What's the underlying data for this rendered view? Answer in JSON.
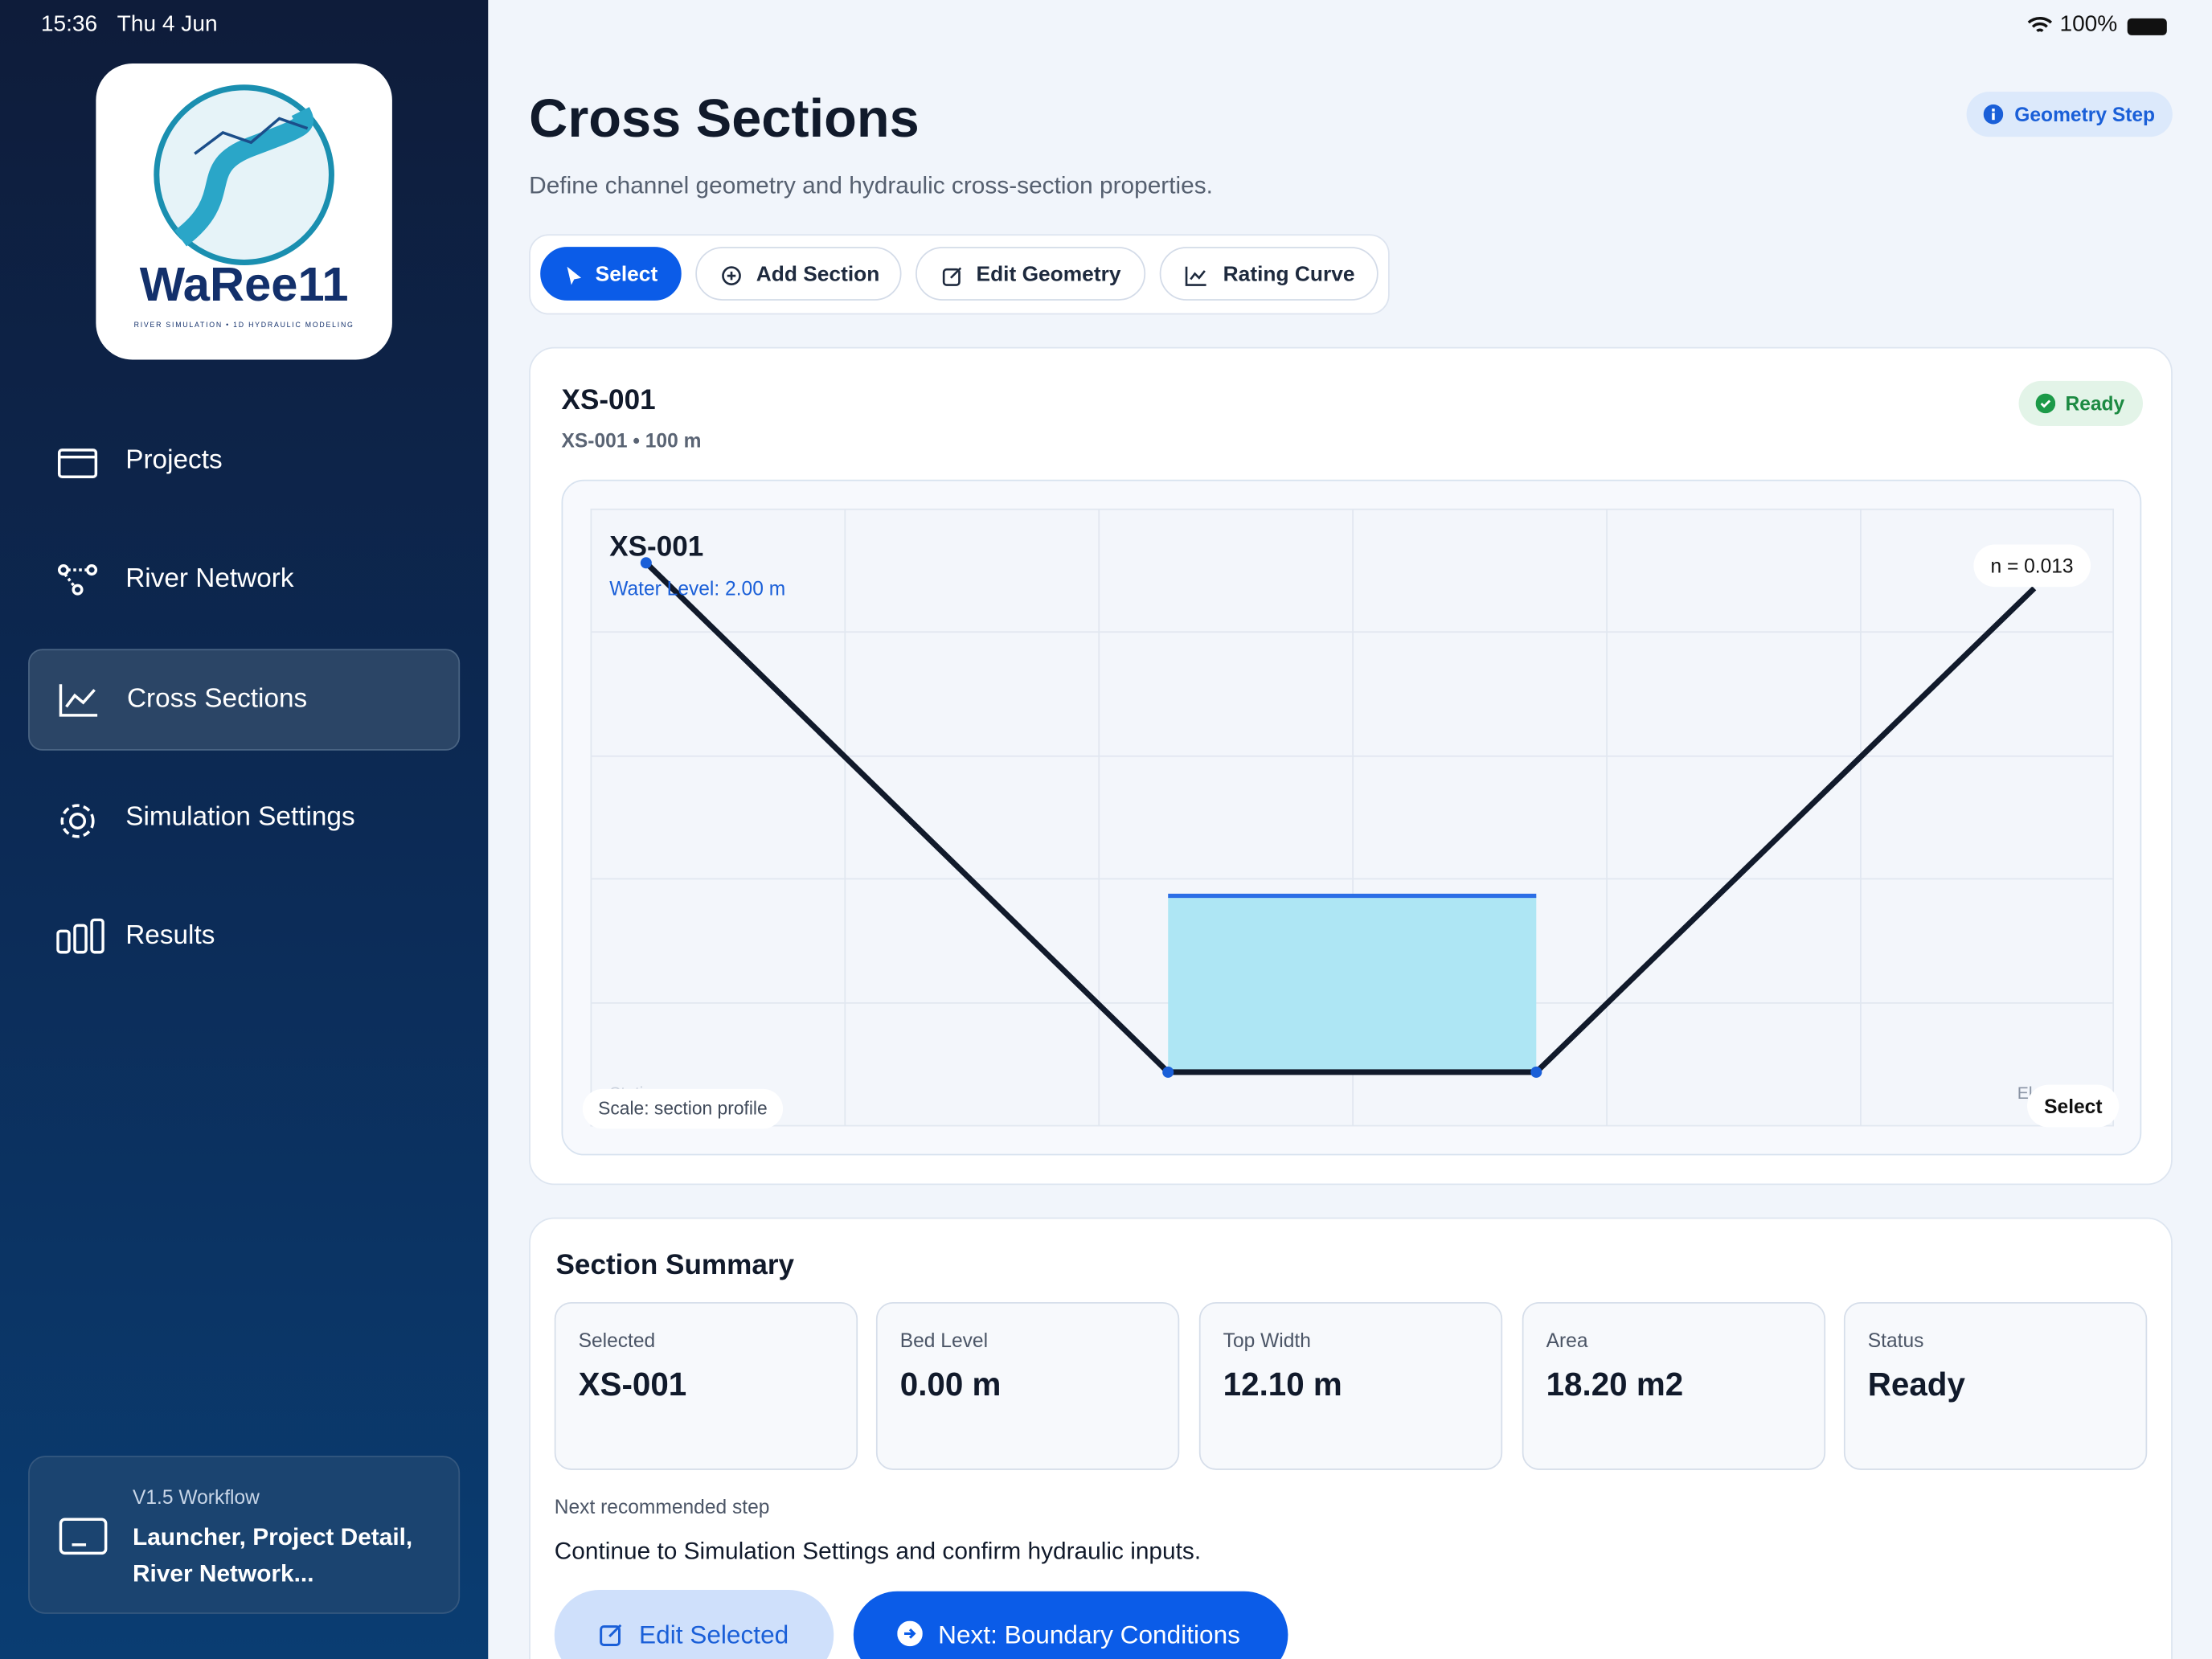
{
  "status_bar": {
    "time": "15:36",
    "date": "Thu 4 Jun",
    "battery": "100%"
  },
  "sidebar": {
    "logo": {
      "title": "WaRee11",
      "tagline": "RIVER SIMULATION • 1D HYDRAULIC MODELING"
    },
    "nav": [
      "Projects",
      "River Network",
      "Cross Sections",
      "Simulation Settings",
      "Results"
    ],
    "workflow": {
      "label": "V1.5 Workflow",
      "text": "Launcher, Project Detail, River Network..."
    }
  },
  "header": {
    "title": "Cross Sections",
    "subtitle": "Define channel geometry and hydraulic cross-section properties.",
    "badge": "Geometry Step"
  },
  "toolbar": [
    "Select",
    "Add Section",
    "Edit Geometry",
    "Rating Curve"
  ],
  "section_card": {
    "title": "XS-001",
    "meta": "XS-001 • 100 m",
    "status": "Ready",
    "profile": {
      "label": "XS-001",
      "water_level": "Water Level: 2.00 m",
      "roughness": "n = 0.013",
      "scale": "Scale: section profile",
      "station": "Station",
      "elevation": "El",
      "mode": "Select"
    }
  },
  "summary": {
    "title": "Section Summary",
    "cards": [
      {
        "label": "Selected",
        "value": "XS-001"
      },
      {
        "label": "Bed Level",
        "value": "0.00 m"
      },
      {
        "label": "Top Width",
        "value": "12.10 m"
      },
      {
        "label": "Area",
        "value": "18.20 m2"
      },
      {
        "label": "Status",
        "value": "Ready"
      }
    ],
    "next_label": "Next recommended step",
    "next_text": "Continue to Simulation Settings and confirm hydraulic inputs.",
    "buttons": [
      "Edit Selected",
      "Next: Boundary Conditions"
    ]
  }
}
